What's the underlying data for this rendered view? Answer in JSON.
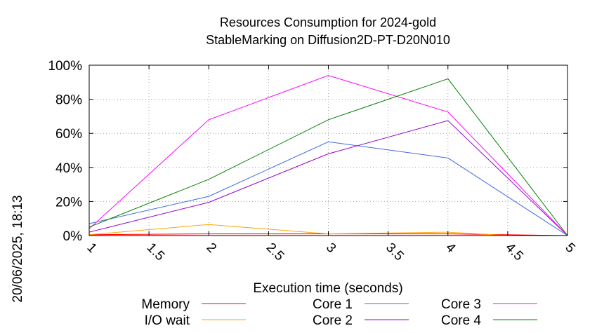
{
  "chart_data": {
    "type": "line",
    "title": [
      "Resources Consumption for 2024-gold",
      "StableMarking on Diffusion2D-PT-D20N010"
    ],
    "xlabel": "Execution time (seconds)",
    "ylabel": "",
    "side_label": "20/06/2025, 18:13",
    "xlim": [
      1,
      5
    ],
    "ylim": [
      0,
      100
    ],
    "x_ticks": [
      1,
      1.5,
      2,
      2.5,
      3,
      3.5,
      4,
      4.5,
      5
    ],
    "x_tick_labels": [
      "1",
      "1.5",
      "2",
      "2.5",
      "3",
      "3.5",
      "4",
      "4.5",
      "5"
    ],
    "y_ticks": [
      0,
      20,
      40,
      60,
      80,
      100
    ],
    "y_tick_labels": [
      "0%",
      "20%",
      "40%",
      "60%",
      "80%",
      "100%"
    ],
    "grid": true,
    "legend_position": "bottom",
    "series": [
      {
        "name": "Memory",
        "color": "#ff0000",
        "x": [
          1,
          2,
          3,
          4,
          5
        ],
        "values": [
          0.5,
          1,
          1,
          1,
          0
        ]
      },
      {
        "name": "I/O wait",
        "color": "#ffa500",
        "x": [
          1,
          2,
          3,
          4,
          4.5
        ],
        "values": [
          0.5,
          6.5,
          1,
          2,
          0
        ]
      },
      {
        "name": "Core 1",
        "color": "#4169e1",
        "x": [
          1,
          2,
          3,
          4,
          5
        ],
        "values": [
          7,
          23,
          55,
          45.5,
          0
        ]
      },
      {
        "name": "Core 2",
        "color": "#9400d3",
        "x": [
          1,
          2,
          3,
          4,
          5
        ],
        "values": [
          2,
          19.5,
          48,
          67.5,
          0
        ]
      },
      {
        "name": "Core 3",
        "color": "#ff00ff",
        "x": [
          1,
          2,
          3,
          4,
          5
        ],
        "values": [
          4,
          68,
          94,
          72.5,
          0
        ]
      },
      {
        "name": "Core 4",
        "color": "#008000",
        "x": [
          1,
          2,
          3,
          4,
          5
        ],
        "values": [
          5,
          33,
          68,
          92,
          0
        ]
      }
    ]
  }
}
